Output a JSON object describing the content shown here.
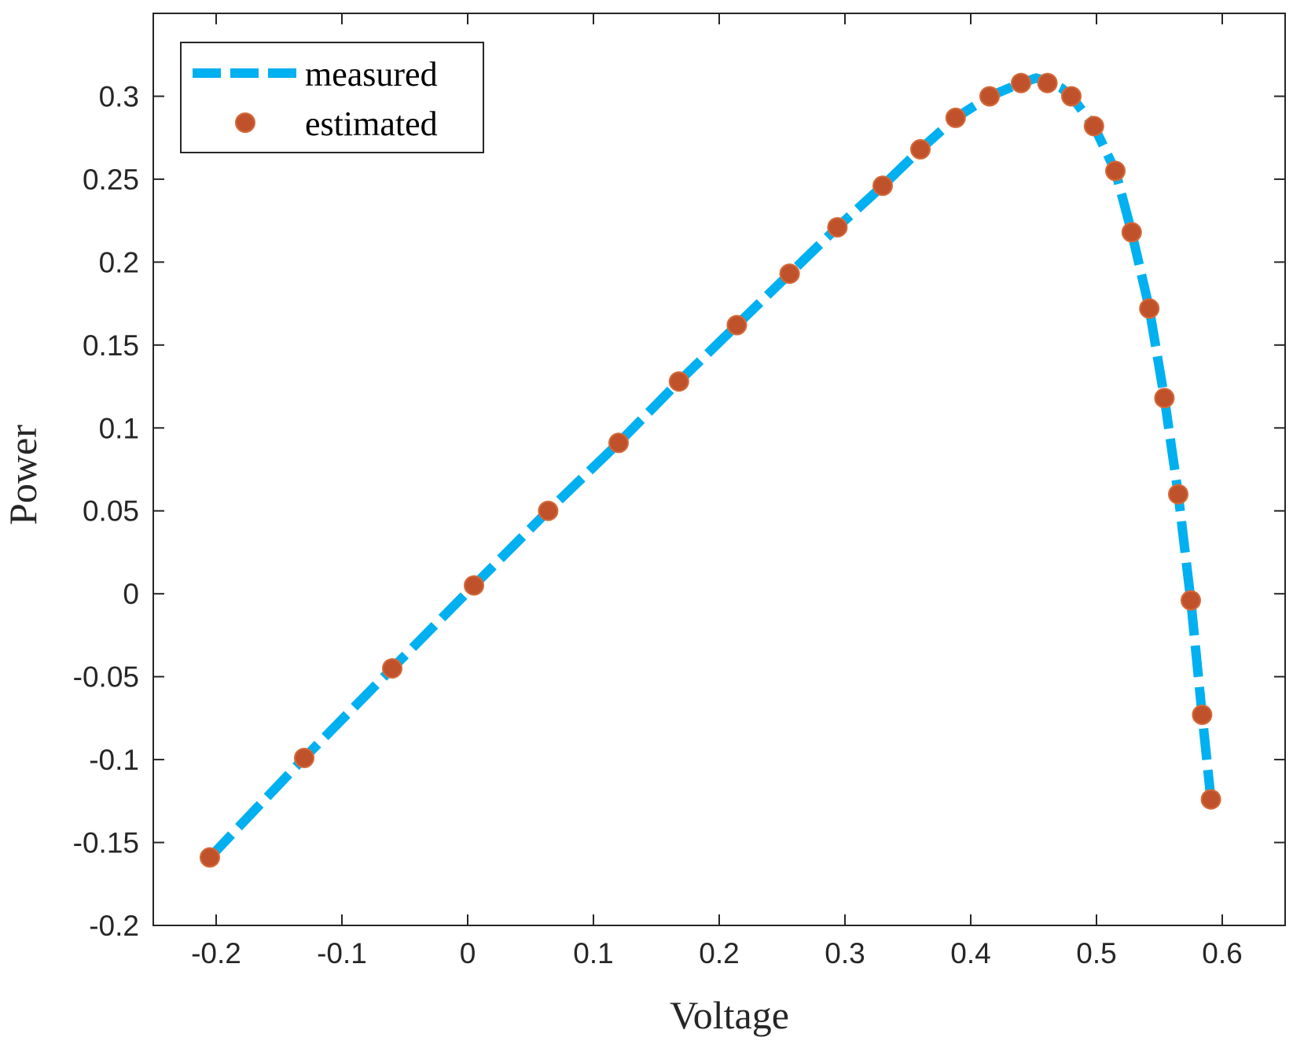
{
  "chart_data": {
    "type": "line",
    "title": "",
    "xlabel": "Voltage",
    "ylabel": "Power",
    "xlim": [
      -0.25,
      0.65
    ],
    "ylim": [
      -0.2,
      0.35
    ],
    "xticks": [
      -0.2,
      -0.1,
      0,
      0.1,
      0.2,
      0.3,
      0.4,
      0.5,
      0.6
    ],
    "xtick_labels": [
      "-0.2",
      "-0.1",
      "0",
      "0.1",
      "0.2",
      "0.3",
      "0.4",
      "0.5",
      "0.6"
    ],
    "yticks": [
      -0.2,
      -0.15,
      -0.1,
      -0.05,
      0,
      0.05,
      0.1,
      0.15,
      0.2,
      0.25,
      0.3
    ],
    "ytick_labels": [
      "-0.2",
      "-0.15",
      "-0.1",
      "-0.05",
      "0",
      "0.05",
      "0.1",
      "0.15",
      "0.2",
      "0.25",
      "0.3"
    ],
    "grid": false,
    "legend_position": "top-left",
    "series": [
      {
        "name": "measured",
        "style": "dashed-line",
        "color": "#00B0F0",
        "x": [
          -0.205,
          -0.13,
          -0.06,
          0.005,
          0.064,
          0.12,
          0.168,
          0.214,
          0.256,
          0.294,
          0.33,
          0.36,
          0.388,
          0.415,
          0.44,
          0.452,
          0.461,
          0.472,
          0.48,
          0.498,
          0.515,
          0.528,
          0.542,
          0.554,
          0.565,
          0.575,
          0.584,
          0.591
        ],
        "y": [
          -0.159,
          -0.099,
          -0.045,
          0.005,
          0.05,
          0.091,
          0.128,
          0.162,
          0.193,
          0.221,
          0.246,
          0.268,
          0.287,
          0.3,
          0.308,
          0.311,
          0.309,
          0.305,
          0.3,
          0.282,
          0.255,
          0.218,
          0.172,
          0.118,
          0.06,
          -0.004,
          -0.073,
          -0.124
        ]
      },
      {
        "name": "estimated",
        "style": "markers",
        "color": "#C0522B",
        "x": [
          -0.205,
          -0.13,
          -0.06,
          0.005,
          0.064,
          0.12,
          0.168,
          0.214,
          0.256,
          0.294,
          0.33,
          0.36,
          0.388,
          0.415,
          0.44,
          0.461,
          0.48,
          0.498,
          0.515,
          0.528,
          0.542,
          0.554,
          0.565,
          0.575,
          0.584,
          0.591
        ],
        "y": [
          -0.159,
          -0.099,
          -0.045,
          0.005,
          0.05,
          0.091,
          0.128,
          0.162,
          0.193,
          0.221,
          0.246,
          0.268,
          0.287,
          0.3,
          0.308,
          0.308,
          0.3,
          0.282,
          0.255,
          0.218,
          0.172,
          0.118,
          0.06,
          -0.004,
          -0.073,
          -0.124
        ]
      }
    ]
  }
}
